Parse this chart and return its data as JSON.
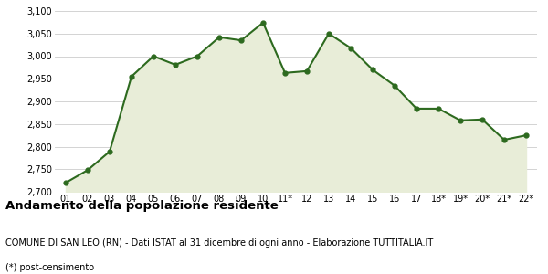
{
  "x_labels": [
    "01",
    "02",
    "03",
    "04",
    "05",
    "06",
    "07",
    "08",
    "09",
    "10",
    "11*",
    "12",
    "13",
    "14",
    "15",
    "16",
    "17",
    "18*",
    "19*",
    "20*",
    "21*",
    "22*"
  ],
  "y_values": [
    2720,
    2748,
    2789,
    2955,
    3000,
    2981,
    3000,
    3042,
    3035,
    3074,
    2963,
    2967,
    3050,
    3018,
    2970,
    2935,
    2884,
    2884,
    2858,
    2860,
    2815,
    2825
  ],
  "ylim": [
    2700,
    3100
  ],
  "yticks": [
    2700,
    2750,
    2800,
    2850,
    2900,
    2950,
    3000,
    3050,
    3100
  ],
  "line_color": "#2d6a1f",
  "fill_color": "#e8edd8",
  "marker": "o",
  "marker_size": 3.5,
  "line_width": 1.5,
  "title": "Andamento della popolazione residente",
  "subtitle": "COMUNE DI SAN LEO (RN) - Dati ISTAT al 31 dicembre di ogni anno - Elaborazione TUTTITALIA.IT",
  "footnote": "(*) post-censimento",
  "title_fontsize": 9.5,
  "subtitle_fontsize": 7.0,
  "footnote_fontsize": 7.0,
  "tick_fontsize": 7.0,
  "bg_color": "#ffffff",
  "grid_color": "#cccccc"
}
